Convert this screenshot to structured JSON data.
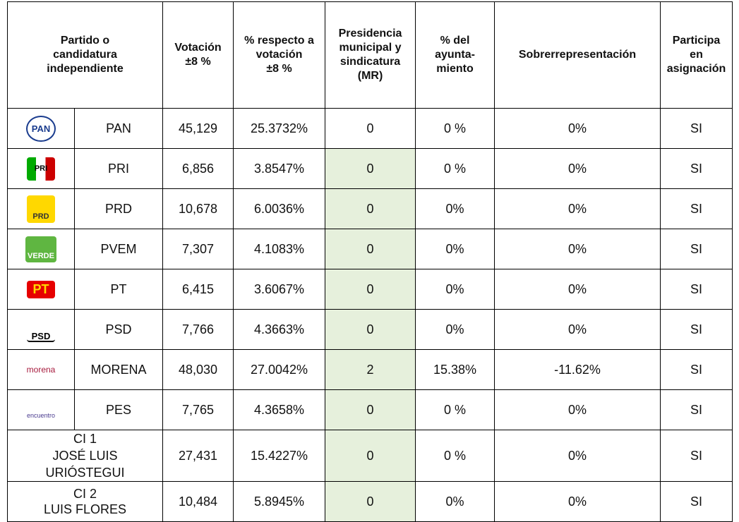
{
  "table": {
    "header": [
      "Partido o\ncandidatura\nindependiente",
      "Votación\n±8 %",
      "% respecto a\nvotación\n±8 %",
      "Presidencia\nmunicipal y\nsindicatura\n(MR)",
      "% del\nayunta-\nmiento",
      "Sobrerrepresentación",
      "Participa\nen\nasignación"
    ],
    "rows": [
      {
        "logo": "PAN",
        "party": "PAN",
        "votes": "45,129",
        "pct": "25.3732%",
        "mr": "0",
        "ayunt": "0 %",
        "sobre": "0%",
        "participa": "SI"
      },
      {
        "logo": "PRI",
        "party": "PRI",
        "votes": "6,856",
        "pct": "3.8547%",
        "mr": "0",
        "ayunt": "0 %",
        "sobre": "0%",
        "participa": "SI"
      },
      {
        "logo": "PRD",
        "party": "PRD",
        "votes": "10,678",
        "pct": "6.0036%",
        "mr": "0",
        "ayunt": "0%",
        "sobre": "0%",
        "participa": "SI"
      },
      {
        "logo": "VERDE",
        "party": "PVEM",
        "votes": "7,307",
        "pct": "4.1083%",
        "mr": "0",
        "ayunt": "0%",
        "sobre": "0%",
        "participa": "SI"
      },
      {
        "logo": "PT",
        "party": "PT",
        "votes": "6,415",
        "pct": "3.6067%",
        "mr": "0",
        "ayunt": "0%",
        "sobre": "0%",
        "participa": "SI"
      },
      {
        "logo": "PSD",
        "party": "PSD",
        "votes": "7,766",
        "pct": "4.3663%",
        "mr": "0",
        "ayunt": "0%",
        "sobre": "0%",
        "participa": "SI"
      },
      {
        "logo": "morena",
        "party": "MORENA",
        "votes": "48,030",
        "pct": "27.0042%",
        "mr": "2",
        "ayunt": "15.38%",
        "sobre": "-11.62%",
        "participa": "SI"
      },
      {
        "logo": "encuentro",
        "party": "PES",
        "votes": "7,765",
        "pct": "4.3658%",
        "mr": "0",
        "ayunt": "0 %",
        "sobre": "0%",
        "participa": "SI"
      },
      {
        "party": "CI 1\nJOSÉ LUIS\nURIÓSTEGUI",
        "votes": "27,431",
        "pct": "15.4227%",
        "mr": "0",
        "ayunt": "0 %",
        "sobre": "0%",
        "participa": "SI"
      },
      {
        "party": "CI 2\nLUIS FLORES",
        "votes": "10,484",
        "pct": "5.8945%",
        "mr": "0",
        "ayunt": "0%",
        "sobre": "0%",
        "participa": "SI"
      }
    ]
  }
}
